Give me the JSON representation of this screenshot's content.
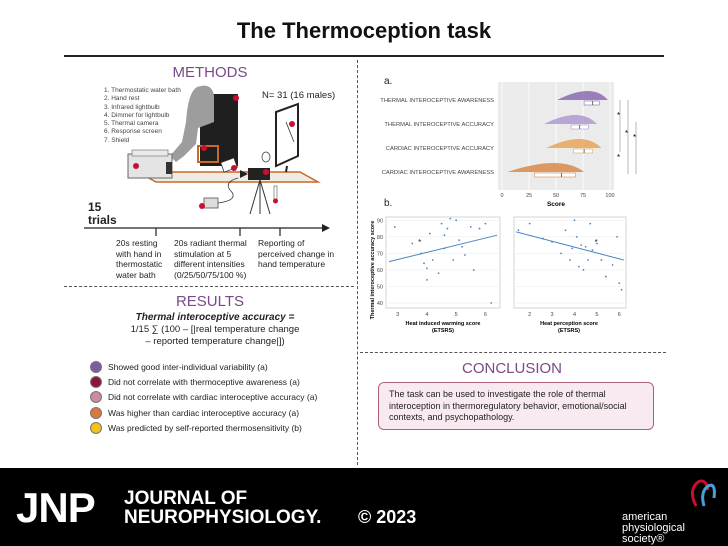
{
  "title": "The Thermoception task",
  "methods": {
    "heading": "METHODS",
    "equipment": [
      "1.  Thermostatic water bath",
      "2.  Hand rest",
      "3.  Infrared lightbulb",
      "4.  Dimmer for lightbulb",
      "5.  Thermal camera",
      "6.  Response screen",
      "7.  Shield"
    ],
    "participants": "N= 31 (16 males)",
    "trials_count": "15",
    "trials_label": "trials",
    "timeline": [
      "20s resting with hand in thermostatic water bath",
      "20s radiant thermal stimulation at 5 different intensities (0/25/50/75/100 %)",
      "Reporting of perceived change in hand temperature"
    ]
  },
  "results": {
    "heading": "RESULTS",
    "formula_title": "Thermal interoceptive accuracy =",
    "formula_line1": "1/15 ∑ (100 – [|real temperature change",
    "formula_line2": "– reported temperature change|])",
    "items": [
      {
        "text": "Showed good inter-individual variability (a)",
        "color": "#7c5ca0"
      },
      {
        "text": "Did not correlate with thermoceptive awareness (a)",
        "color": "#8b1538"
      },
      {
        "text": "Did not correlate with cardiac interoceptive accuracy (a)",
        "color": "#c98ca0"
      },
      {
        "text": "Was higher than cardiac interoceptive accuracy (a)",
        "color": "#d9783c"
      },
      {
        "text": "Was predicted by self-reported thermosensitivity (b)",
        "color": "#f2c11a"
      }
    ]
  },
  "panel_a": {
    "label": "a.",
    "chart_data": {
      "type": "raincloud",
      "categories": [
        "THERMAL INTEROCEPTIVE AWARENESS",
        "THERMAL INTEROCEPTIVE ACCURACY",
        "CARDIAC INTEROCEPTIVE ACCURACY",
        "CARDIAC INTEROCEPTIVE AWARENESS"
      ],
      "colors": [
        "#8a6cb0",
        "#b09ad0",
        "#e8a458",
        "#d88a48"
      ],
      "medians": [
        84,
        72,
        76,
        55
      ],
      "q1": [
        76,
        64,
        66,
        30
      ],
      "q3": [
        90,
        80,
        84,
        68
      ],
      "xlabel": "Score",
      "xticks": [
        "0",
        "25",
        "50",
        "75",
        "100"
      ],
      "xlim": [
        0,
        100
      ],
      "sig_marks": [
        "*",
        "*",
        "*",
        "*"
      ]
    }
  },
  "panel_b": {
    "label": "b.",
    "chart_data": [
      {
        "type": "scatter",
        "xlabel": "Heat induced warming score",
        "xlabel2": "(ETSRS)",
        "ylabel": "Thermal interoceptive accuracy score",
        "xticks": [
          "3",
          "4",
          "5",
          "6"
        ],
        "yticks": [
          "40",
          "50",
          "60",
          "70",
          "80",
          "90"
        ],
        "xlim": [
          2.6,
          6.5
        ],
        "ylim": [
          37,
          92
        ],
        "x": [
          2.9,
          3.5,
          3.8,
          3.9,
          4.0,
          4.0,
          4.1,
          4.2,
          4.4,
          4.5,
          4.6,
          4.6,
          4.7,
          4.8,
          4.9,
          5.0,
          5.1,
          5.2,
          5.3,
          5.5,
          5.6,
          5.8,
          6.0,
          6.2
        ],
        "y": [
          86,
          76,
          70,
          64,
          61,
          54,
          82,
          66,
          58,
          88,
          73,
          81,
          85,
          91,
          66,
          90,
          78,
          74,
          69,
          86,
          60,
          85,
          88,
          40
        ],
        "fit": [
          [
            2.7,
            65
          ],
          [
            6.4,
            81
          ]
        ],
        "annotation": "*"
      },
      {
        "type": "scatter",
        "xlabel": "Heat perception score",
        "xlabel2": "(ETSRS)",
        "ylabel": "",
        "xticks": [
          "2",
          "3",
          "4",
          "5",
          "6"
        ],
        "yticks": [],
        "xlim": [
          1.3,
          6.3
        ],
        "ylim": [
          37,
          92
        ],
        "x": [
          1.5,
          2.0,
          2.6,
          3.0,
          3.4,
          3.6,
          3.8,
          3.9,
          4.0,
          4.1,
          4.2,
          4.3,
          4.4,
          4.5,
          4.6,
          4.7,
          4.8,
          5.0,
          5.2,
          5.4,
          5.7,
          5.9,
          6.0,
          6.1
        ],
        "y": [
          84,
          88,
          79,
          77,
          70,
          84,
          66,
          73,
          90,
          80,
          62,
          75,
          60,
          74,
          66,
          88,
          72,
          76,
          66,
          56,
          63,
          80,
          52,
          48
        ],
        "fit": [
          [
            1.4,
            83
          ],
          [
            6.2,
            66
          ]
        ],
        "annotation": "*"
      }
    ]
  },
  "conclusion": {
    "heading": "CONCLUSION",
    "text": "The task can be used to investigate the role of thermal interoception in thermoregulatory behavior, emotional/social contexts, and psychopathology."
  },
  "footer": {
    "jnp": "JNP",
    "journal_line1": "JOURNAL OF",
    "journal_line2": "NEUROPHYSIOLOGY.",
    "copyright": "© 2023",
    "society_line1": "american",
    "society_line2": "physiological",
    "society_line3": "society®",
    "colors": {
      "bg": "#000000",
      "text": "#ffffff",
      "logo_red": "#c8102e",
      "logo_blue": "#4a9fd8"
    }
  }
}
